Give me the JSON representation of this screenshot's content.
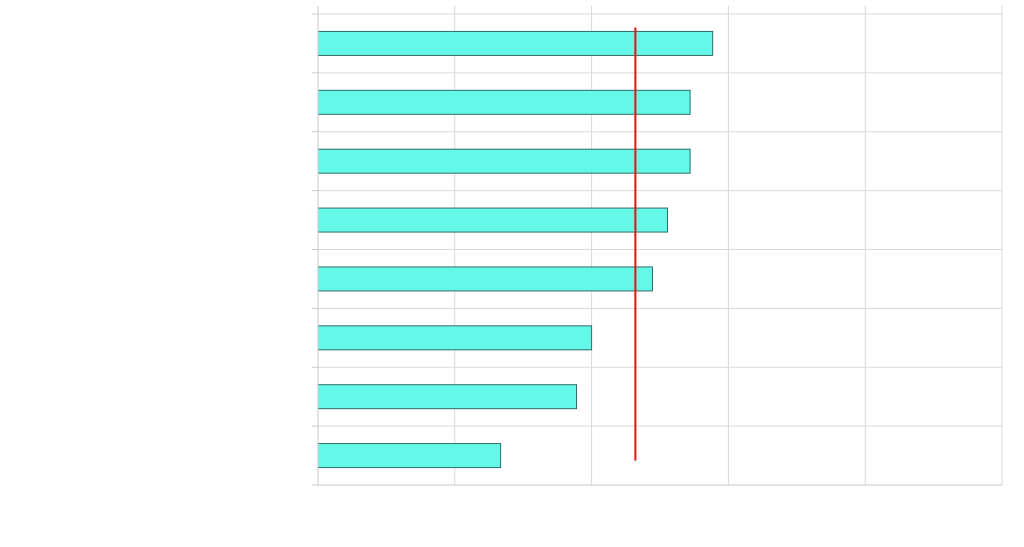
{
  "chart_data": {
    "type": "bar",
    "orientation": "horizontal",
    "title": "",
    "xlabel": "",
    "ylabel": "",
    "categories": [
      "",
      "",
      "",
      "",
      "",
      "",
      "",
      ""
    ],
    "values": [
      5.77,
      5.44,
      5.44,
      5.11,
      4.89,
      4.0,
      3.78,
      2.67
    ],
    "xlim": [
      0,
      10
    ],
    "x_gridlines": [
      0,
      2,
      4,
      6,
      8,
      10
    ],
    "grid": true,
    "legend": "none",
    "reference_line": {
      "value": 4.64,
      "color": "#e8120c"
    },
    "colors": {
      "bar_fill": "#64f8e8",
      "bar_stroke": "#2e6d68",
      "grid": "#d9d9d9",
      "axis": "#c8c8c8"
    }
  }
}
